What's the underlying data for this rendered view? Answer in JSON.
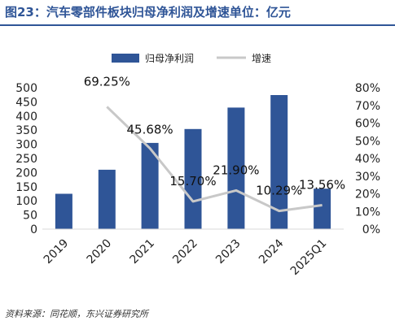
{
  "header": {
    "title": "图23：汽车零部件板块归母净利润及增速单位：亿元"
  },
  "source": "资料来源：同花顺，东兴证券研究所",
  "colors": {
    "bar": "#2f5597",
    "line": "#c8c8c8",
    "title": "#2f5597"
  },
  "chart_data": {
    "type": "bar",
    "categories": [
      "2019",
      "2020",
      "2021",
      "2022",
      "2023",
      "2024",
      "2025Q1"
    ],
    "series": [
      {
        "name": "归母净利润",
        "type": "bar",
        "axis": "left",
        "values": [
          125,
          210,
          305,
          354,
          430,
          474,
          143
        ]
      },
      {
        "name": "增速",
        "type": "line",
        "axis": "right",
        "values": [
          null,
          69.25,
          45.68,
          15.7,
          21.9,
          10.29,
          13.56
        ]
      }
    ],
    "data_labels": [
      null,
      "69.25%",
      "45.68%",
      "15.70%",
      "21.90%",
      "10.29%",
      "13.56%"
    ],
    "y_left": {
      "ticks": [
        "0",
        "50",
        "100",
        "150",
        "200",
        "250",
        "300",
        "350",
        "400",
        "450",
        "500"
      ],
      "ylim": [
        0,
        500
      ]
    },
    "y_right": {
      "ticks": [
        "0%",
        "10%",
        "20%",
        "30%",
        "40%",
        "50%",
        "60%",
        "70%",
        "80%"
      ],
      "ylim": [
        0,
        80
      ]
    },
    "legend_position": "top",
    "grid": false
  }
}
